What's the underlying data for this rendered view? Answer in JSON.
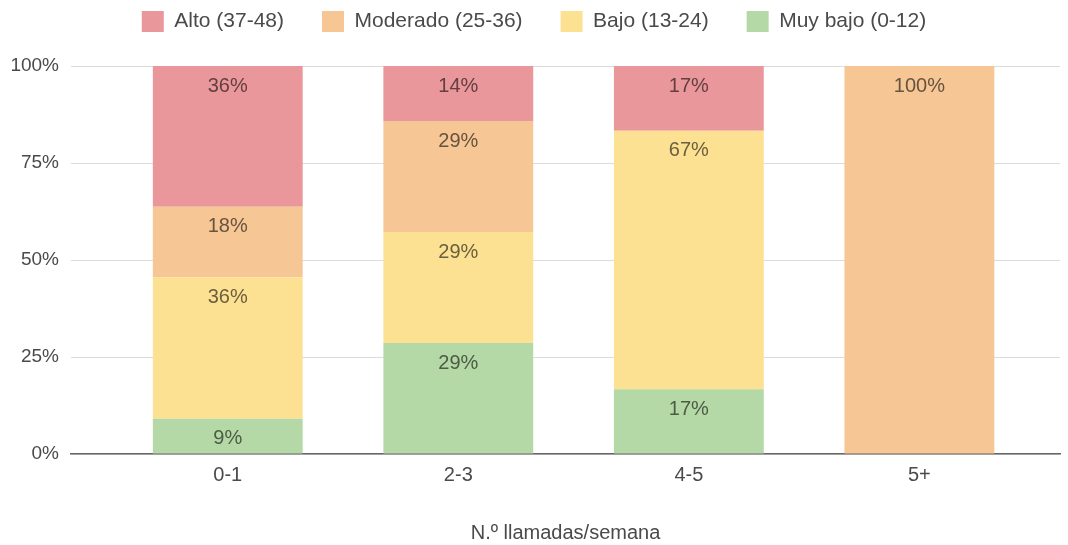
{
  "chart_data": {
    "type": "bar",
    "stacked": true,
    "categories": [
      "0-1",
      "2-3",
      "4-5",
      "5+"
    ],
    "xlabel": "N.º llamadas/semana",
    "series": [
      {
        "name": "Muy bajo (0-12)",
        "color": "#b5d9a6",
        "values": [
          9.1,
          28.6,
          16.7,
          null
        ],
        "value_labels": [
          "9%",
          "29%",
          "17%",
          null
        ]
      },
      {
        "name": "Bajo (13-24)",
        "color": "#fde193",
        "values": [
          36.4,
          28.6,
          66.6,
          null
        ],
        "value_labels": [
          "36%",
          "29%",
          "67%",
          null
        ]
      },
      {
        "name": "Moderado (25-36)",
        "color": "#f6c695",
        "values": [
          18.2,
          28.6,
          null,
          100
        ],
        "value_labels": [
          "18%",
          "29%",
          null,
          "100%"
        ]
      },
      {
        "name": "Alto (37-48)",
        "color": "#e9979b",
        "values": [
          36.3,
          14.2,
          16.7,
          null
        ],
        "value_labels": [
          "36%",
          "14%",
          "17%",
          null
        ]
      }
    ],
    "ylim": [
      0,
      100
    ],
    "yticks": [
      {
        "value": 0,
        "label": "0%"
      },
      {
        "value": 25,
        "label": "25%"
      },
      {
        "value": 50,
        "label": "50%"
      },
      {
        "value": 75,
        "label": "75%"
      },
      {
        "value": 100,
        "label": "100%"
      }
    ],
    "grid": "y",
    "legend": "top"
  }
}
